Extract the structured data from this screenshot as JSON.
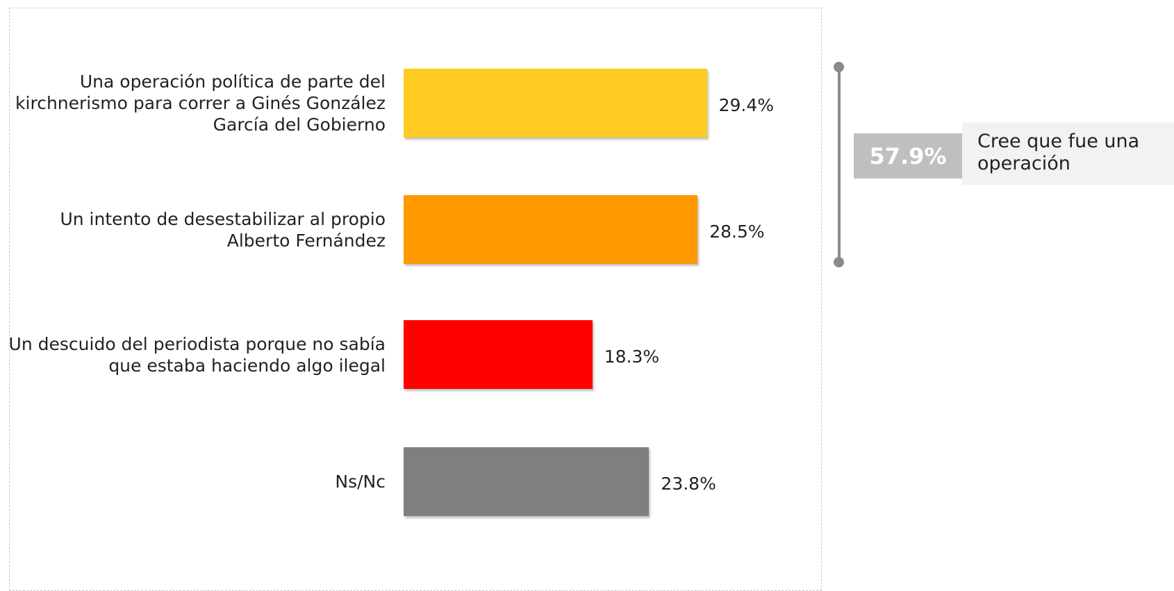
{
  "chart_data": {
    "type": "bar",
    "orientation": "horizontal",
    "categories": [
      "Una operación política de parte del kirchnerismo para correr a Ginés González García del Gobierno",
      "Un intento de desestabilizar al propio Alberto Fernández",
      "Un descuido del periodista porque no sabía que estaba haciendo algo ilegal",
      "Ns/Nc"
    ],
    "values": [
      29.4,
      28.5,
      18.3,
      23.8
    ],
    "value_labels": [
      "29.4%",
      "28.5%",
      "18.3%",
      "23.8%"
    ],
    "colors": [
      "#ffca22",
      "#ff9900",
      "#ff0000",
      "#7f7f7f"
    ],
    "xlim": [
      0,
      40
    ],
    "annotation": {
      "value": 57.9,
      "label": "57.9%",
      "text": "Cree que fue una operación"
    }
  }
}
